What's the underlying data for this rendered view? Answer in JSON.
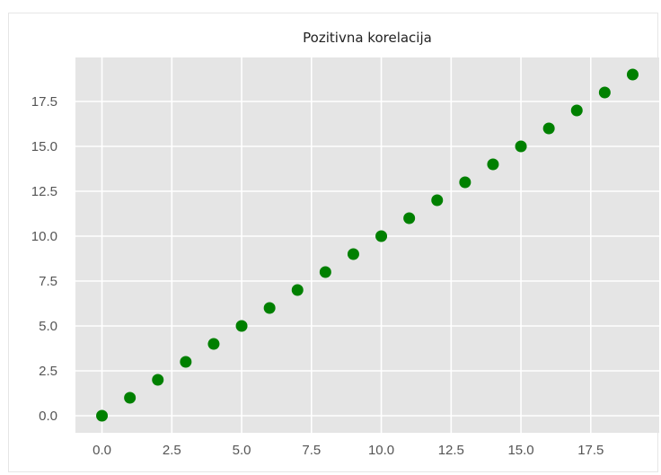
{
  "chart_data": {
    "type": "scatter",
    "title": "Pozitivna korelacija",
    "xlabel": "",
    "ylabel": "",
    "x": [
      0,
      1,
      2,
      3,
      4,
      5,
      6,
      7,
      8,
      9,
      10,
      11,
      12,
      13,
      14,
      15,
      16,
      17,
      18,
      19
    ],
    "y": [
      0,
      1,
      2,
      3,
      4,
      5,
      6,
      7,
      8,
      9,
      10,
      11,
      12,
      13,
      14,
      15,
      16,
      17,
      18,
      19
    ],
    "xlim": [
      -0.95,
      19.95
    ],
    "ylim": [
      -0.95,
      19.95
    ],
    "x_ticks": [
      0,
      2.5,
      5,
      7.5,
      10,
      12.5,
      15,
      17.5
    ],
    "x_tick_labels": [
      "0.0",
      "2.5",
      "5.0",
      "7.5",
      "10.0",
      "12.5",
      "15.0",
      "17.5"
    ],
    "y_ticks": [
      0,
      2.5,
      5,
      7.5,
      10,
      12.5,
      15,
      17.5
    ],
    "y_tick_labels": [
      "0.0",
      "2.5",
      "5.0",
      "7.5",
      "10.0",
      "12.5",
      "15.0",
      "17.5"
    ],
    "grid": true,
    "marker_color": "#008000",
    "background_color": "#e5e5e5",
    "grid_color": "#ffffff"
  }
}
